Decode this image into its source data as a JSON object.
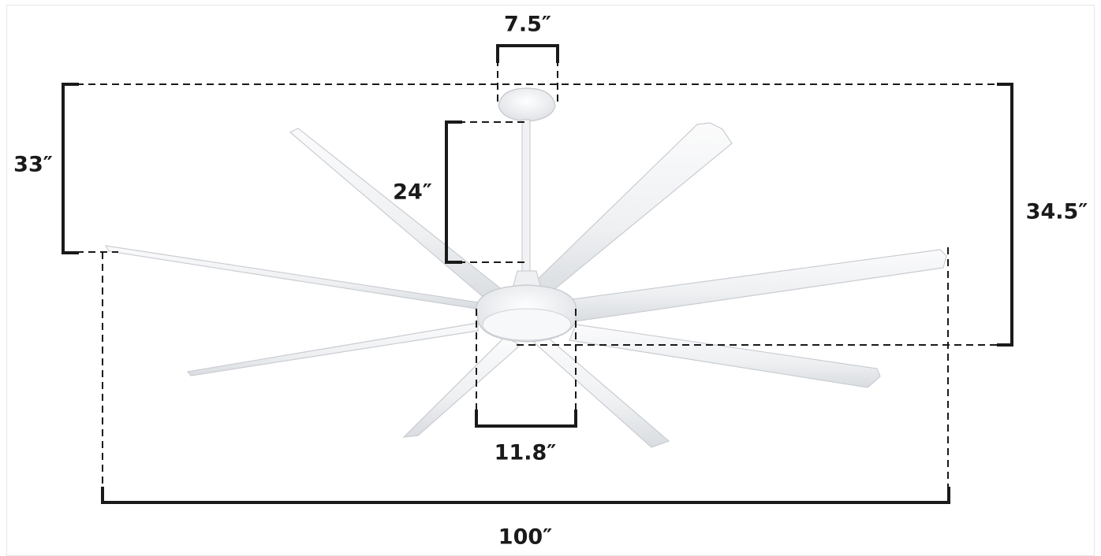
{
  "diagram": {
    "subject": "ceiling-fan",
    "blade_color": "#f3f4f6",
    "blade_edge_color": "#c9ccd1",
    "line_color": "#1a1a1a",
    "dimensions": {
      "canopy_width": "7.5″",
      "downrod_length": "24″",
      "blade_height": "33″",
      "overall_height": "34.5″",
      "motor_width": "11.8″",
      "span": "100″"
    }
  }
}
